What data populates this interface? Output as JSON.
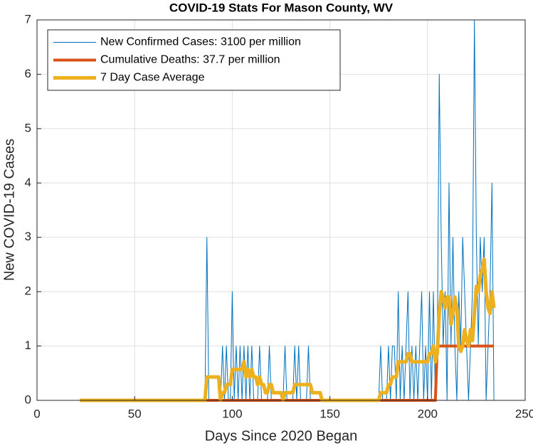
{
  "chart_data": {
    "type": "line",
    "title": "COVID-19 Stats For Mason County, WV",
    "x_label": "Days Since 2020 Began",
    "y_label": "New COVID-19 Cases",
    "xlim": [
      0,
      250
    ],
    "xticks": [
      0,
      50,
      100,
      150,
      200,
      250
    ],
    "ylim": [
      0,
      7
    ],
    "yticks": [
      0,
      1,
      2,
      3,
      4,
      5,
      6,
      7
    ],
    "grid": true,
    "legend": "top-left",
    "x": [
      22,
      23,
      24,
      25,
      26,
      27,
      28,
      29,
      30,
      31,
      32,
      33,
      34,
      35,
      36,
      37,
      38,
      39,
      40,
      41,
      42,
      43,
      44,
      45,
      46,
      47,
      48,
      49,
      50,
      51,
      52,
      53,
      54,
      55,
      56,
      57,
      58,
      59,
      60,
      61,
      62,
      63,
      64,
      65,
      66,
      67,
      68,
      69,
      70,
      71,
      72,
      73,
      74,
      75,
      76,
      77,
      78,
      79,
      80,
      81,
      82,
      83,
      84,
      85,
      86,
      87,
      88,
      89,
      90,
      91,
      92,
      93,
      94,
      95,
      96,
      97,
      98,
      99,
      100,
      101,
      102,
      103,
      104,
      105,
      106,
      107,
      108,
      109,
      110,
      111,
      112,
      113,
      114,
      115,
      116,
      117,
      118,
      119,
      120,
      121,
      122,
      123,
      124,
      125,
      126,
      127,
      128,
      129,
      130,
      131,
      132,
      133,
      134,
      135,
      136,
      137,
      138,
      139,
      140,
      141,
      142,
      143,
      144,
      145,
      146,
      147,
      148,
      149,
      150,
      151,
      152,
      153,
      154,
      155,
      156,
      157,
      158,
      159,
      160,
      161,
      162,
      163,
      164,
      165,
      166,
      167,
      168,
      169,
      170,
      171,
      172,
      173,
      174,
      175,
      176,
      177,
      178,
      179,
      180,
      181,
      182,
      183,
      184,
      185,
      186,
      187,
      188,
      189,
      190,
      191,
      192,
      193,
      194,
      195,
      196,
      197,
      198,
      199,
      200,
      201,
      202,
      203,
      204,
      205,
      206,
      207,
      208,
      209,
      210,
      211,
      212,
      213,
      214,
      215,
      216,
      217,
      218,
      219,
      220,
      221,
      222,
      223,
      224,
      225,
      226,
      227,
      228,
      229,
      230,
      231,
      232,
      233,
      234
    ],
    "series": [
      {
        "name": "New Confirmed Cases: 3100 per million",
        "color": "#0072BD",
        "width": 1,
        "values": [
          0,
          0,
          0,
          0,
          0,
          0,
          0,
          0,
          0,
          0,
          0,
          0,
          0,
          0,
          0,
          0,
          0,
          0,
          0,
          0,
          0,
          0,
          0,
          0,
          0,
          0,
          0,
          0,
          0,
          0,
          0,
          0,
          0,
          0,
          0,
          0,
          0,
          0,
          0,
          0,
          0,
          0,
          0,
          0,
          0,
          0,
          0,
          0,
          0,
          0,
          0,
          0,
          0,
          0,
          0,
          0,
          0,
          0,
          0,
          0,
          0,
          0,
          0,
          0,
          0,
          3,
          0,
          0,
          0,
          0,
          0,
          0,
          0,
          1,
          0,
          1,
          0,
          0,
          2,
          0,
          1,
          0,
          1,
          0,
          1,
          0,
          1,
          0,
          1,
          0,
          0,
          0,
          1,
          0,
          0,
          0,
          0,
          1,
          0,
          0,
          0,
          0,
          0,
          0,
          0,
          1,
          0,
          0,
          0,
          0,
          1,
          0,
          1,
          0,
          0,
          0,
          0,
          1,
          0,
          0,
          0,
          0,
          0,
          0,
          0,
          0,
          0,
          0,
          0,
          0,
          0,
          0,
          0,
          0,
          0,
          0,
          0,
          0,
          0,
          0,
          0,
          0,
          0,
          0,
          0,
          0,
          0,
          0,
          0,
          0,
          0,
          0,
          0,
          0,
          1,
          0,
          0,
          0,
          1,
          0,
          1,
          1,
          0,
          2,
          0,
          1,
          0,
          1,
          2,
          0,
          1,
          0,
          1,
          0,
          1,
          2,
          0,
          1,
          0,
          2,
          0,
          2,
          0,
          1,
          6,
          3,
          1,
          2,
          0,
          4,
          1,
          3,
          1,
          0,
          2,
          1,
          3,
          2,
          1,
          0,
          1,
          2,
          7,
          3,
          1,
          3,
          2,
          3,
          0,
          1,
          2,
          4,
          0
        ]
      },
      {
        "name": "Cumulative Deaths: 37.7 per million",
        "color": "#D95319",
        "width": 4,
        "values": [
          0,
          0,
          0,
          0,
          0,
          0,
          0,
          0,
          0,
          0,
          0,
          0,
          0,
          0,
          0,
          0,
          0,
          0,
          0,
          0,
          0,
          0,
          0,
          0,
          0,
          0,
          0,
          0,
          0,
          0,
          0,
          0,
          0,
          0,
          0,
          0,
          0,
          0,
          0,
          0,
          0,
          0,
          0,
          0,
          0,
          0,
          0,
          0,
          0,
          0,
          0,
          0,
          0,
          0,
          0,
          0,
          0,
          0,
          0,
          0,
          0,
          0,
          0,
          0,
          0,
          0,
          0,
          0,
          0,
          0,
          0,
          0,
          0,
          0,
          0,
          0,
          0,
          0,
          0,
          0,
          0,
          0,
          0,
          0,
          0,
          0,
          0,
          0,
          0,
          0,
          0,
          0,
          0,
          0,
          0,
          0,
          0,
          0,
          0,
          0,
          0,
          0,
          0,
          0,
          0,
          0,
          0,
          0,
          0,
          0,
          0,
          0,
          0,
          0,
          0,
          0,
          0,
          0,
          0,
          0,
          0,
          0,
          0,
          0,
          0,
          0,
          0,
          0,
          0,
          0,
          0,
          0,
          0,
          0,
          0,
          0,
          0,
          0,
          0,
          0,
          0,
          0,
          0,
          0,
          0,
          0,
          0,
          0,
          0,
          0,
          0,
          0,
          0,
          0,
          0,
          0,
          0,
          0,
          0,
          0,
          0,
          0,
          0,
          0,
          0,
          0,
          0,
          0,
          0,
          0,
          0,
          0,
          0,
          0,
          0,
          0,
          0,
          0,
          0,
          0,
          0,
          0,
          0,
          1,
          1,
          1,
          1,
          1,
          1,
          1,
          1,
          1,
          1,
          1,
          1,
          1,
          1,
          1,
          1,
          1,
          1,
          1,
          1,
          1,
          1,
          1,
          1,
          1,
          1,
          1,
          1,
          1,
          1
        ]
      },
      {
        "name": "7 Day Case Average",
        "color": "#EDB120",
        "width": 5,
        "values": [
          0,
          0,
          0,
          0,
          0,
          0,
          0,
          0,
          0,
          0,
          0,
          0,
          0,
          0,
          0,
          0,
          0,
          0,
          0,
          0,
          0,
          0,
          0,
          0,
          0,
          0,
          0,
          0,
          0,
          0,
          0,
          0,
          0,
          0,
          0,
          0,
          0,
          0,
          0,
          0,
          0,
          0,
          0,
          0,
          0,
          0,
          0,
          0,
          0,
          0,
          0,
          0,
          0,
          0,
          0,
          0,
          0,
          0,
          0,
          0,
          0,
          0,
          0,
          0,
          0,
          0.43,
          0.43,
          0.43,
          0.43,
          0.43,
          0.43,
          0.43,
          0,
          0.14,
          0.14,
          0.29,
          0.29,
          0.29,
          0.57,
          0.57,
          0.57,
          0.57,
          0.57,
          0.57,
          0.71,
          0.43,
          0.57,
          0.43,
          0.57,
          0.43,
          0.43,
          0.29,
          0.43,
          0.29,
          0.29,
          0.14,
          0.14,
          0.29,
          0.29,
          0.14,
          0.14,
          0.14,
          0.14,
          0.14,
          0,
          0.14,
          0.14,
          0.14,
          0.14,
          0.14,
          0.29,
          0.29,
          0.29,
          0.29,
          0.29,
          0.29,
          0.29,
          0.29,
          0.29,
          0.14,
          0.14,
          0.14,
          0.14,
          0.14,
          0,
          0,
          0,
          0,
          0,
          0,
          0,
          0,
          0,
          0,
          0,
          0,
          0,
          0,
          0,
          0,
          0,
          0,
          0,
          0,
          0,
          0,
          0,
          0,
          0,
          0,
          0,
          0,
          0,
          0,
          0.14,
          0.14,
          0.14,
          0.14,
          0.29,
          0.29,
          0.43,
          0.43,
          0.43,
          0.71,
          0.71,
          0.71,
          0.71,
          0.71,
          0.86,
          0.86,
          0.71,
          0.71,
          0.71,
          0.71,
          0.71,
          0.71,
          0.71,
          0.71,
          0.71,
          0.86,
          0.86,
          1.0,
          0.71,
          0.86,
          1.6,
          2.0,
          1.9,
          1.7,
          1.9,
          1.9,
          1.4,
          1.6,
          1.9,
          1.7,
          1.0,
          0.9,
          1.0,
          1.3,
          1.1,
          1.0,
          1.3,
          1.1,
          1.6,
          2.1,
          2.0,
          2.3,
          2.4,
          2.6,
          2.0,
          1.7,
          1.6,
          2.0,
          1.7
        ]
      }
    ]
  }
}
